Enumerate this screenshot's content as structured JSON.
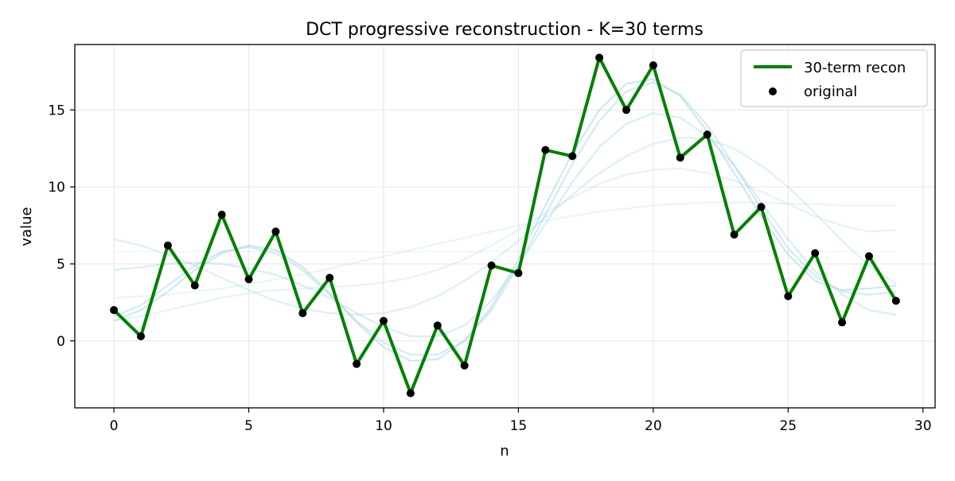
{
  "chart_data": {
    "type": "line",
    "title": "DCT progressive reconstruction - K=30 terms",
    "xlabel": "n",
    "ylabel": "value",
    "xlim": [
      -1.45,
      30.45
    ],
    "ylim": [
      -4.35,
      19.25
    ],
    "xticks": [
      0,
      5,
      10,
      15,
      20,
      25,
      30
    ],
    "yticks": [
      0,
      5,
      10,
      15
    ],
    "grid": true,
    "legend_position": "top-right",
    "x": [
      0,
      1,
      2,
      3,
      4,
      5,
      6,
      7,
      8,
      9,
      10,
      11,
      12,
      13,
      14,
      15,
      16,
      17,
      18,
      19,
      20,
      21,
      22,
      23,
      24,
      25,
      26,
      27,
      28,
      29
    ],
    "series": [
      {
        "name": "30-term recon",
        "kind": "line",
        "color": "#008000",
        "values": [
          2.0,
          0.3,
          6.2,
          3.6,
          8.2,
          4.0,
          7.1,
          1.8,
          4.1,
          -1.5,
          1.3,
          -3.4,
          1.0,
          -1.6,
          4.9,
          4.4,
          12.4,
          12.0,
          18.4,
          15.0,
          17.9,
          11.9,
          13.4,
          6.9,
          8.7,
          2.9,
          5.7,
          1.2,
          5.5,
          2.6
        ]
      },
      {
        "name": "original",
        "kind": "scatter",
        "color": "#000000",
        "values": [
          2.0,
          0.3,
          6.2,
          3.6,
          8.2,
          4.0,
          7.1,
          1.8,
          4.1,
          -1.5,
          1.3,
          -3.4,
          1.0,
          -1.6,
          4.9,
          4.4,
          12.4,
          12.0,
          18.4,
          15.0,
          17.9,
          11.9,
          13.4,
          6.9,
          8.7,
          2.9,
          5.7,
          1.2,
          5.5,
          2.6
        ]
      }
    ],
    "faint_reconstructions": {
      "color": "#add8e6",
      "curves": [
        [
          5.8,
          5.8,
          5.8,
          5.8,
          5.8,
          5.8,
          5.8,
          5.8,
          5.8,
          5.8,
          5.8,
          5.8,
          5.8,
          5.8,
          5.8,
          5.8,
          5.8,
          5.8,
          5.8,
          5.8,
          5.8,
          5.8,
          5.8,
          5.8,
          5.8,
          5.8,
          5.8,
          5.8,
          5.8,
          5.8
        ],
        [
          2.8,
          2.9,
          3.0,
          3.2,
          3.4,
          3.7,
          4.0,
          4.3,
          4.7,
          5.1,
          5.5,
          5.9,
          6.3,
          6.7,
          7.1,
          7.5,
          7.8,
          8.1,
          8.4,
          8.6,
          8.8,
          8.9,
          9.0,
          9.0,
          9.0,
          8.9,
          8.9,
          8.8,
          8.8,
          8.8
        ],
        [
          1.3,
          1.6,
          2.0,
          2.4,
          2.8,
          3.1,
          3.3,
          3.4,
          3.5,
          3.6,
          3.8,
          4.1,
          4.6,
          5.3,
          6.2,
          7.2,
          8.3,
          9.3,
          10.2,
          10.8,
          11.1,
          11.2,
          10.9,
          10.4,
          9.7,
          8.9,
          8.1,
          7.5,
          7.1,
          7.2
        ],
        [
          6.6,
          6.2,
          5.6,
          4.9,
          4.1,
          3.3,
          2.6,
          2.1,
          1.8,
          1.7,
          1.8,
          2.2,
          2.9,
          3.9,
          5.1,
          6.5,
          8.0,
          9.5,
          10.9,
          12.0,
          12.8,
          13.2,
          13.1,
          12.5,
          11.4,
          10.0,
          8.3,
          6.5,
          4.9,
          3.7
        ],
        [
          4.6,
          4.8,
          5.0,
          5.1,
          5.0,
          4.7,
          4.3,
          3.6,
          2.8,
          1.8,
          0.9,
          0.3,
          0.3,
          1.0,
          2.6,
          4.9,
          7.6,
          10.3,
          12.6,
          14.1,
          14.8,
          14.5,
          13.3,
          11.4,
          9.0,
          6.6,
          4.5,
          3.0,
          2.0,
          1.7
        ],
        [
          1.6,
          2.3,
          3.6,
          4.9,
          5.8,
          6.1,
          5.7,
          4.6,
          3.0,
          1.3,
          -0.1,
          -0.9,
          -0.9,
          0.0,
          2.0,
          4.9,
          8.2,
          11.5,
          14.3,
          16.2,
          16.8,
          16.0,
          14.0,
          11.4,
          8.6,
          6.0,
          4.2,
          3.2,
          3.0,
          3.2
        ],
        [
          1.3,
          2.0,
          3.2,
          4.6,
          5.7,
          6.2,
          5.9,
          4.8,
          3.1,
          1.2,
          -0.4,
          -1.3,
          -1.2,
          0.0,
          2.2,
          5.3,
          8.8,
          12.2,
          15.0,
          16.7,
          17.0,
          15.9,
          13.6,
          10.9,
          8.1,
          5.6,
          3.9,
          3.3,
          3.4,
          3.6
        ]
      ]
    }
  }
}
